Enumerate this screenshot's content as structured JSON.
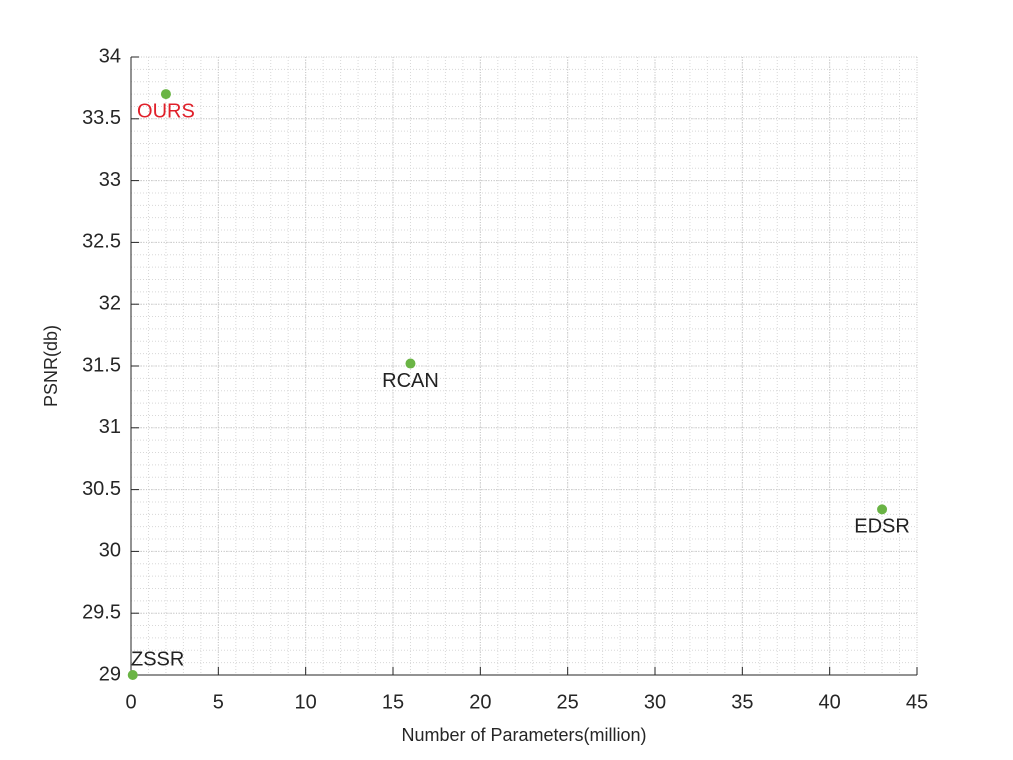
{
  "chart_data": {
    "type": "scatter",
    "xlabel": "Number of Parameters(million)",
    "ylabel": "PSNR(db)",
    "x": [
      2,
      16,
      43,
      0.1
    ],
    "values": [
      33.7,
      31.52,
      30.34,
      29.0
    ],
    "point_labels": [
      "OURS",
      "RCAN",
      "EDSR",
      "ZSSR"
    ],
    "label_colors": [
      "#e0202a",
      "#222222",
      "#222222",
      "#222222"
    ],
    "color": "#6ab445",
    "xlim": [
      0,
      45
    ],
    "xticks": [
      0,
      5,
      10,
      15,
      20,
      25,
      30,
      35,
      40,
      45
    ],
    "ylim": [
      29,
      34
    ],
    "yticks": [
      29,
      {
        "value": 29.5,
        "label": "29.5"
      },
      30,
      {
        "value": 30.5,
        "label": "30.5"
      },
      31,
      {
        "value": 31.5,
        "label": "31.5"
      },
      32,
      {
        "value": 32.5,
        "label": "32.5"
      },
      33,
      {
        "value": 33.5,
        "label": "33.5"
      },
      34
    ],
    "grid": true,
    "minor_grid": true
  }
}
